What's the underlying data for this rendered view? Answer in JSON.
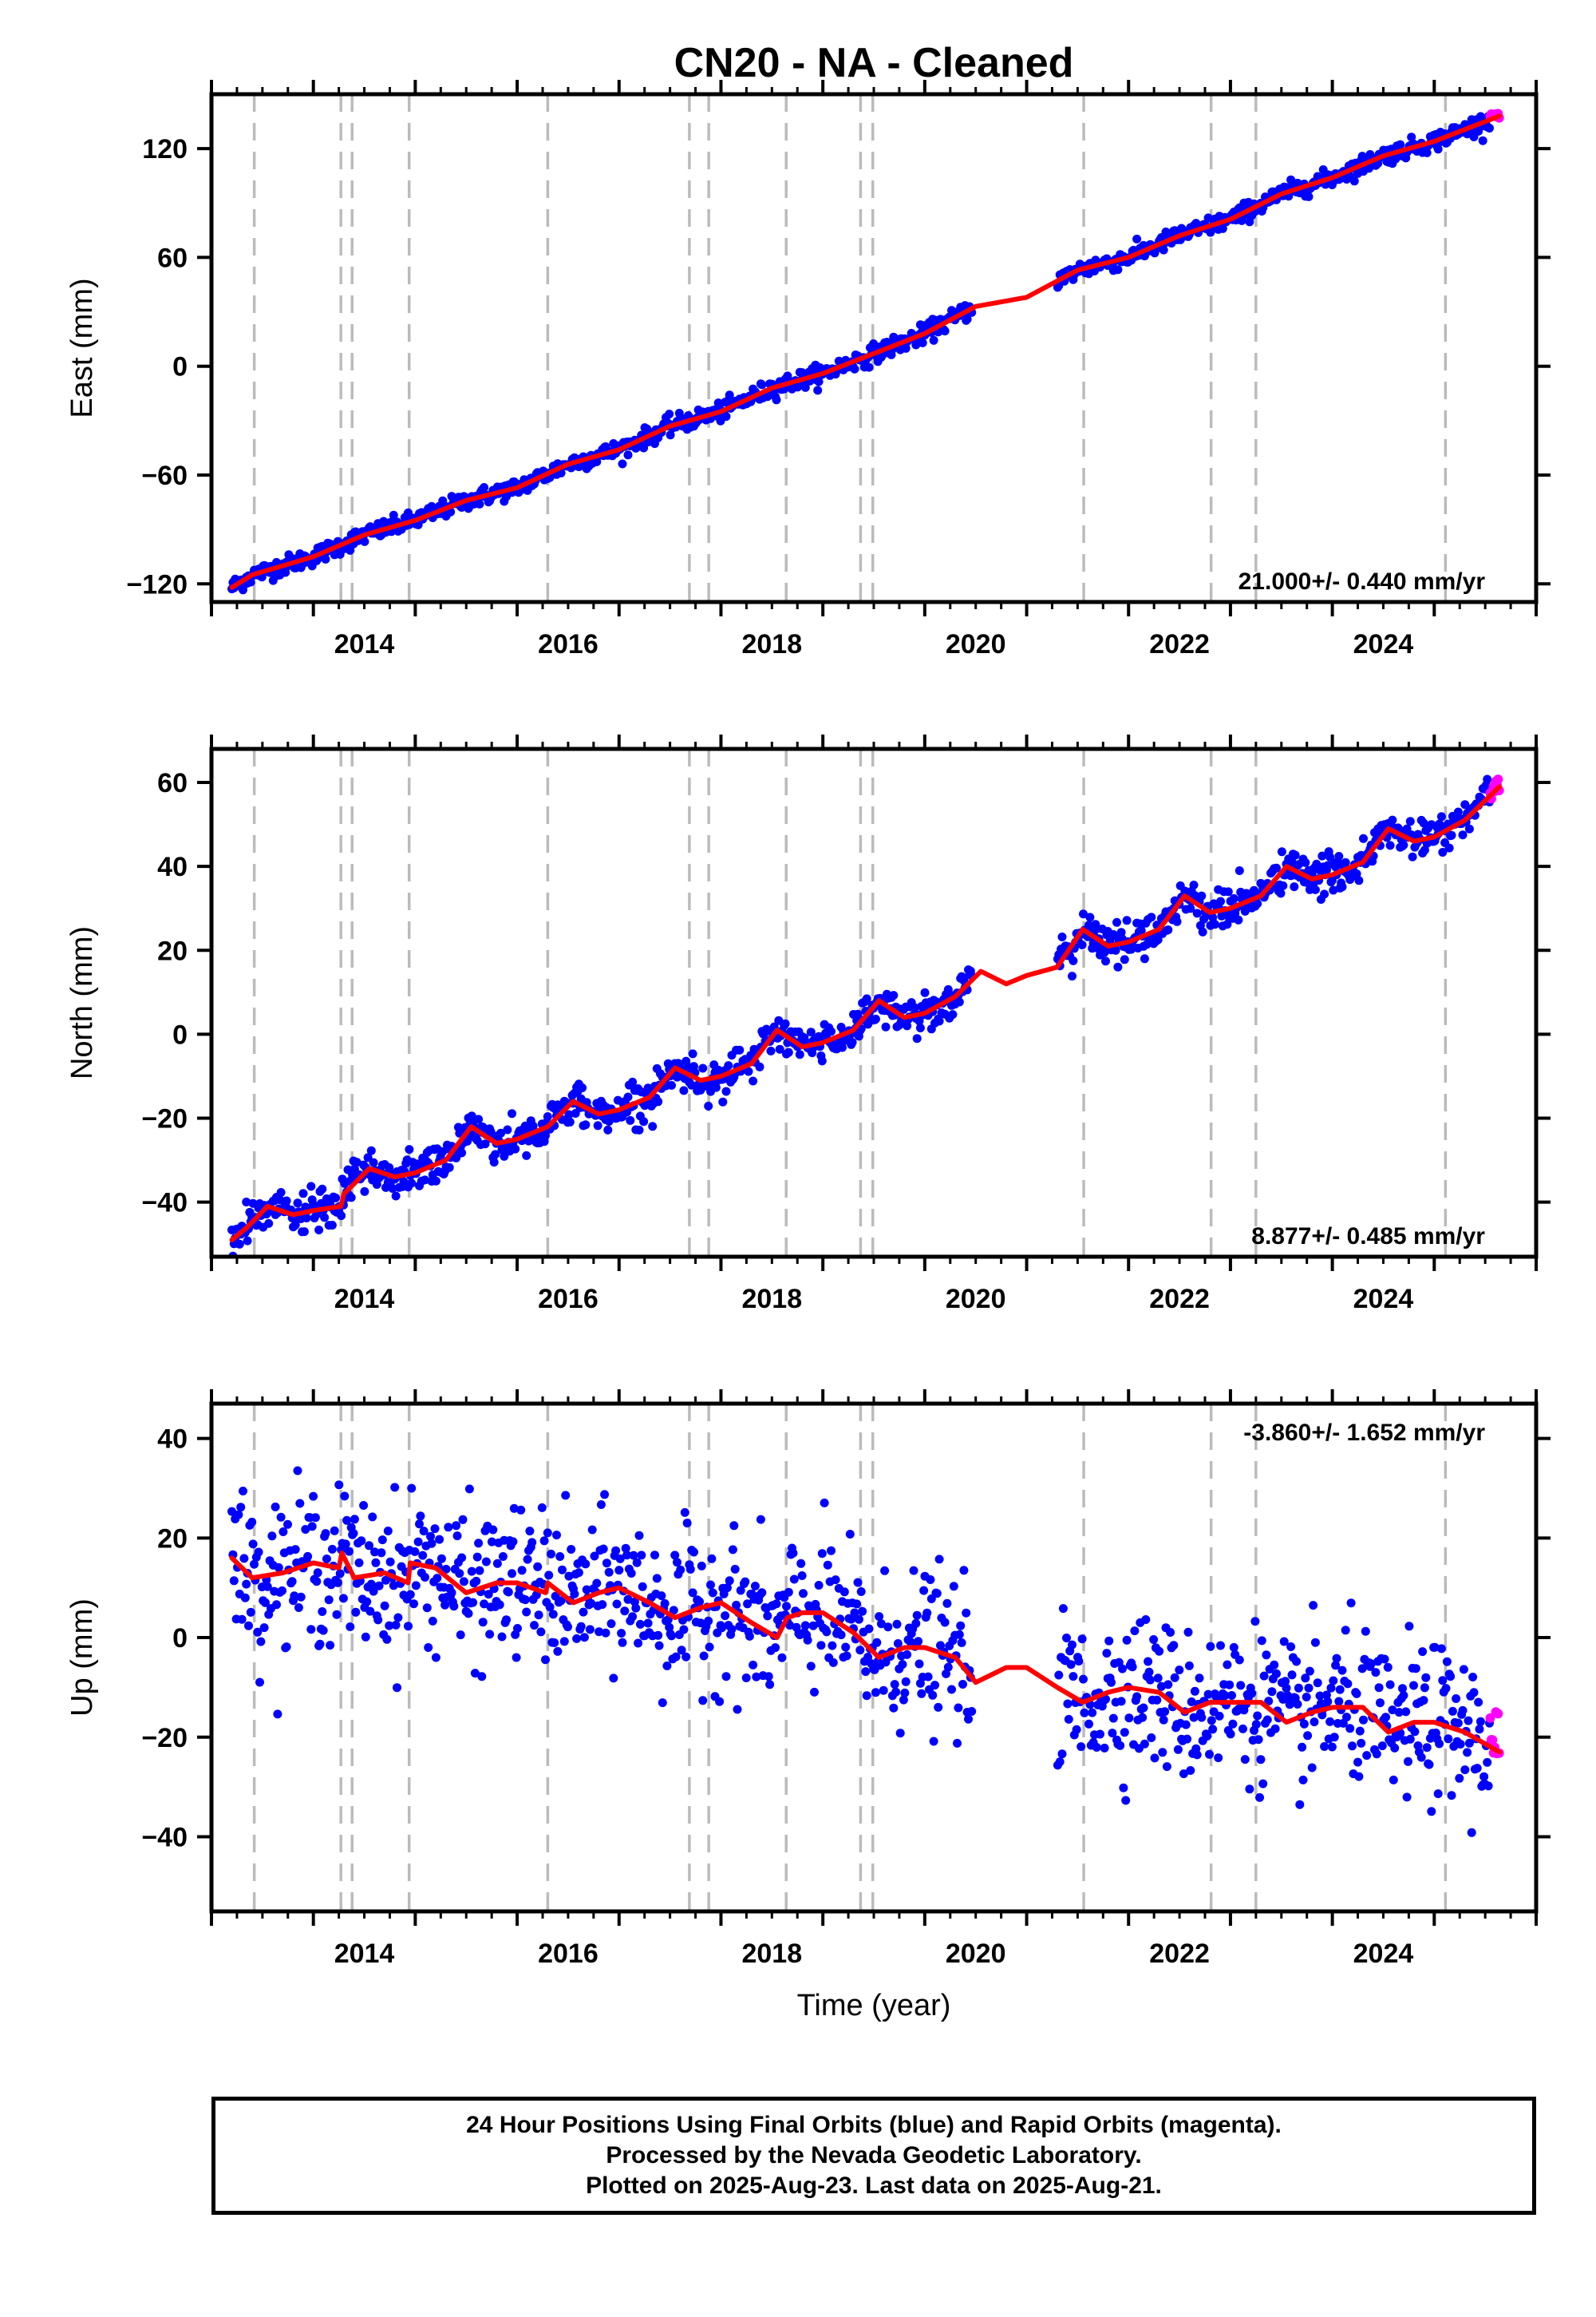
{
  "title": "CN20  - NA - Cleaned",
  "colors": {
    "final_points": "#0000ff",
    "rapid_points": "#ff00ff",
    "model_line": "#ff0000",
    "event_lines": "#bbbbbb",
    "axes": "#000000"
  },
  "chart_data": [
    {
      "type": "scatter",
      "component": "east",
      "ylabel": "East (mm)",
      "xlabel": "",
      "xlim": [
        2013.0,
        2026.0
      ],
      "ylim": [
        -130,
        150
      ],
      "yticks": [
        -120,
        -60,
        0,
        60,
        120
      ],
      "xticks": [
        2014,
        2016,
        2018,
        2020,
        2022,
        2024
      ],
      "grid": false,
      "rate_label": "21.000+/- 0.440 mm/yr",
      "rate_position": "bottom-right",
      "data_start": 2013.2,
      "data_end": 2025.64,
      "gap": [
        2020.47,
        2021.3
      ],
      "rapid_start": 2025.55,
      "series": [
        {
          "name": "Final Orbits",
          "kind": "points",
          "color": "#0000ff",
          "scatter_sd": 2.5
        },
        {
          "name": "Rapid Orbits",
          "kind": "points",
          "color": "#ff00ff"
        },
        {
          "name": "Model",
          "kind": "line",
          "color": "#ff0000",
          "x": [
            2013.2,
            2013.4,
            2013.7,
            2014.0,
            2014.5,
            2015.0,
            2015.5,
            2016.0,
            2016.5,
            2017.0,
            2017.5,
            2018.0,
            2018.5,
            2019.0,
            2019.5,
            2020.0,
            2020.5,
            2021.0,
            2021.5,
            2022.0,
            2022.5,
            2023.0,
            2023.5,
            2024.0,
            2024.5,
            2025.0,
            2025.64
          ],
          "y": [
            -122,
            -115,
            -110,
            -105,
            -93,
            -85,
            -74,
            -67,
            -54,
            -46,
            -33,
            -25,
            -12,
            -4,
            7,
            18,
            33,
            38,
            53,
            60,
            72,
            81,
            95,
            104,
            116,
            124,
            138
          ]
        }
      ]
    },
    {
      "type": "scatter",
      "component": "north",
      "ylabel": "North (mm)",
      "xlabel": "",
      "xlim": [
        2013.0,
        2026.0
      ],
      "ylim": [
        -53,
        68
      ],
      "yticks": [
        -40,
        -20,
        0,
        20,
        40,
        60
      ],
      "xticks": [
        2014,
        2016,
        2018,
        2020,
        2022,
        2024
      ],
      "grid": false,
      "rate_label": "8.877+/- 0.485 mm/yr",
      "rate_position": "bottom-right",
      "data_start": 2013.2,
      "data_end": 2025.64,
      "gap": [
        2020.47,
        2021.3
      ],
      "rapid_start": 2025.55,
      "series": [
        {
          "name": "Final Orbits",
          "kind": "points",
          "color": "#0000ff",
          "scatter_sd": 2.3
        },
        {
          "name": "Rapid Orbits",
          "kind": "points",
          "color": "#ff00ff"
        },
        {
          "name": "Model",
          "kind": "line",
          "color": "#ff0000",
          "x": [
            2013.2,
            2013.35,
            2013.55,
            2013.8,
            2014.0,
            2014.27,
            2014.3,
            2014.55,
            2014.8,
            2015.0,
            2015.3,
            2015.55,
            2015.8,
            2016.0,
            2016.3,
            2016.55,
            2016.8,
            2017.0,
            2017.3,
            2017.55,
            2017.8,
            2018.0,
            2018.3,
            2018.55,
            2018.8,
            2019.0,
            2019.3,
            2019.55,
            2019.8,
            2020.0,
            2020.3,
            2020.55,
            2020.8,
            2021.0,
            2021.3,
            2021.55,
            2021.8,
            2022.0,
            2022.3,
            2022.55,
            2022.8,
            2023.0,
            2023.3,
            2023.55,
            2023.8,
            2024.0,
            2024.3,
            2024.55,
            2024.8,
            2025.0,
            2025.3,
            2025.64
          ],
          "y": [
            -49,
            -46,
            -41,
            -43,
            -42,
            -41,
            -38,
            -32,
            -34,
            -33,
            -30,
            -22,
            -26,
            -25,
            -22,
            -16,
            -19,
            -18,
            -15,
            -8,
            -11,
            -10,
            -7,
            1,
            -3,
            -2,
            1,
            8,
            4,
            5,
            9,
            15,
            12,
            14,
            16,
            25,
            21,
            22,
            25,
            33,
            29,
            30,
            33,
            40,
            37,
            38,
            41,
            49,
            46,
            47,
            51,
            59
          ]
        }
      ]
    },
    {
      "type": "scatter",
      "component": "up",
      "ylabel": "Up (mm)",
      "xlabel": "Time (year)",
      "xlim": [
        2013.0,
        2026.0
      ],
      "ylim": [
        -55,
        47
      ],
      "yticks": [
        -40,
        -20,
        0,
        20,
        40
      ],
      "xticks": [
        2014,
        2016,
        2018,
        2020,
        2022,
        2024
      ],
      "grid": false,
      "rate_label": "-3.860+/- 1.652 mm/yr",
      "rate_position": "top-right",
      "data_start": 2013.2,
      "data_end": 2025.64,
      "gap": [
        2020.47,
        2021.3
      ],
      "rapid_start": 2025.55,
      "series": [
        {
          "name": "Final Orbits",
          "kind": "points",
          "color": "#0000ff",
          "scatter_sd": 7.5
        },
        {
          "name": "Rapid Orbits",
          "kind": "points",
          "color": "#ff00ff"
        },
        {
          "name": "Model",
          "kind": "line",
          "color": "#ff0000",
          "x": [
            2013.2,
            2013.4,
            2013.7,
            2014.0,
            2014.25,
            2014.28,
            2014.4,
            2014.7,
            2014.93,
            2014.95,
            2015.2,
            2015.5,
            2015.8,
            2016.0,
            2016.28,
            2016.3,
            2016.55,
            2016.8,
            2017.0,
            2017.3,
            2017.55,
            2017.8,
            2018.0,
            2018.3,
            2018.55,
            2018.65,
            2018.8,
            2019.0,
            2019.3,
            2019.55,
            2019.8,
            2020.0,
            2020.3,
            2020.5,
            2020.8,
            2021.0,
            2021.3,
            2021.55,
            2021.8,
            2022.0,
            2022.3,
            2022.55,
            2022.8,
            2023.0,
            2023.3,
            2023.55,
            2023.8,
            2024.0,
            2024.3,
            2024.55,
            2024.8,
            2025.0,
            2025.3,
            2025.64
          ],
          "y": [
            16,
            12,
            13,
            15,
            14,
            17,
            12,
            13,
            11,
            15,
            14,
            9,
            11,
            11,
            9,
            11,
            7,
            9,
            10,
            7,
            4,
            6,
            7,
            3,
            0,
            4,
            5,
            5,
            1,
            -4,
            -2,
            -2,
            -4,
            -9,
            -6,
            -6,
            -10,
            -13,
            -11,
            -10,
            -11,
            -15,
            -13,
            -13,
            -13,
            -17,
            -15,
            -14,
            -14,
            -19,
            -17,
            -17,
            -19,
            -23
          ]
        }
      ]
    }
  ],
  "event_times": [
    2013.42,
    2014.27,
    2014.38,
    2014.94,
    2016.3,
    2017.69,
    2017.88,
    2018.64,
    2019.37,
    2019.49,
    2021.56,
    2022.81,
    2023.25,
    2025.11
  ],
  "caption": {
    "line1": "24 Hour Positions Using Final Orbits (blue) and Rapid Orbits (magenta).",
    "line2": "Processed by the Nevada Geodetic Laboratory.",
    "line3": "Plotted on 2025-Aug-23. Last data on 2025-Aug-21."
  }
}
